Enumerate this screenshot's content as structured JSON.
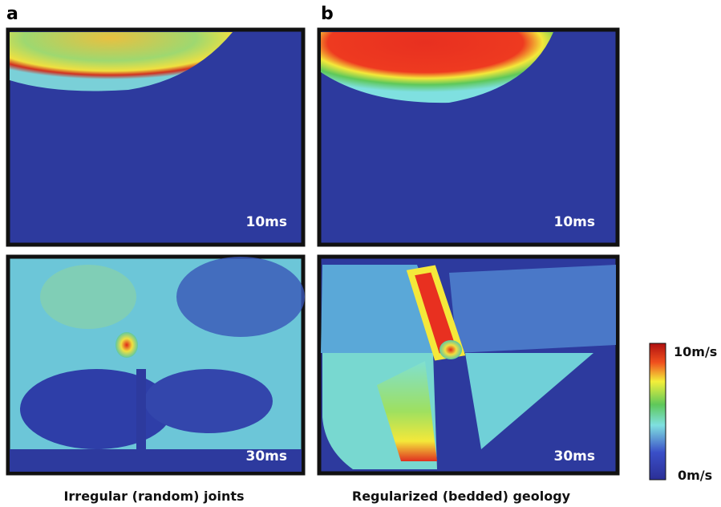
{
  "panels": [
    {
      "label": "a",
      "caption": "Irregular (random) joints",
      "frames": [
        {
          "time": "10ms"
        },
        {
          "time": "30ms"
        }
      ]
    },
    {
      "label": "b",
      "caption": "Regularized (bedded) geology",
      "frames": [
        {
          "time": "10ms"
        },
        {
          "time": "30ms"
        }
      ]
    }
  ],
  "colorbar": {
    "max_label": "10m/s",
    "min_label": "0m/s"
  }
}
